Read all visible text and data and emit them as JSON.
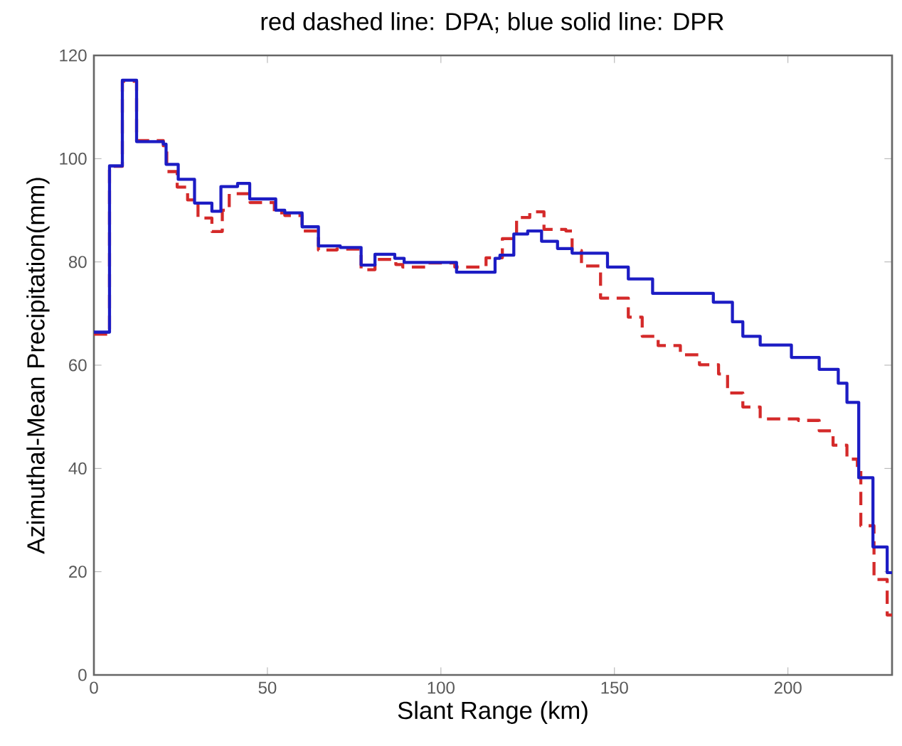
{
  "chart_data": {
    "type": "step",
    "title": "red dashed line: DPA; blue solid line: DPR",
    "xlabel": "Slant Range (km)",
    "ylabel": "Azimuthal-Mean Precipitation(mm)",
    "xlim": [
      0,
      230
    ],
    "ylim": [
      0,
      120
    ],
    "xticks": [
      0,
      50,
      100,
      150,
      200
    ],
    "yticks": [
      0,
      20,
      40,
      60,
      80,
      100,
      120
    ],
    "series": [
      {
        "color": "#d42a2a",
        "line_style": "dashed",
        "x": [
          0,
          4.5,
          8.2,
          12.3,
          20,
          21,
          24,
          27,
          30,
          34,
          37,
          39,
          45,
          52,
          55,
          60,
          64.7,
          70,
          77,
          81,
          87,
          89,
          96,
          104,
          113,
          117.7,
          121.8,
          125.6,
          129.7,
          136,
          137.8,
          140.5,
          146,
          154,
          158,
          162.6,
          169,
          174.5,
          180,
          182.6,
          187,
          192,
          203,
          209,
          213,
          217,
          220,
          221,
          224.8,
          228.6,
          230
        ],
        "values": [
          66,
          98.5,
          115,
          103.5,
          102.5,
          97.5,
          94.5,
          92,
          88.5,
          85.9,
          90,
          93.2,
          91.5,
          89.5,
          89,
          86,
          82.3,
          82.5,
          78.5,
          80.5,
          79.5,
          79,
          79.8,
          79,
          80.8,
          84.5,
          88.6,
          89.7,
          86.3,
          86,
          82.2,
          79.2,
          73,
          69.3,
          65.6,
          63.8,
          62,
          60.1,
          58.3,
          54.6,
          51.9,
          49.6,
          49.3,
          47.3,
          44.5,
          41.8,
          40,
          28.9,
          18.5,
          11.6,
          11.6
        ]
      },
      {
        "color": "#1c1cc4",
        "line_style": "solid",
        "x": [
          0,
          4.5,
          8.2,
          12.3,
          20,
          20.8,
          24.3,
          29,
          34,
          36.6,
          41.4,
          44.9,
          52.4,
          55,
          60,
          64.7,
          71,
          77,
          81,
          86.7,
          89.4,
          96,
          104.5,
          115.6,
          117,
          121,
          125,
          129,
          133.6,
          137.8,
          148,
          154,
          161,
          172,
          178.5,
          184,
          187,
          192,
          201,
          209,
          214.5,
          217,
          220.4,
          224.5,
          228.6,
          230
        ],
        "values": [
          66.4,
          98.6,
          115.2,
          103.3,
          102.8,
          98.9,
          96,
          91.4,
          89.8,
          94.6,
          95.2,
          92.2,
          90,
          89.5,
          86.8,
          83.1,
          82.8,
          79.4,
          81.5,
          80.7,
          79.9,
          79.9,
          78,
          80.7,
          81.3,
          85.4,
          86,
          84,
          82.6,
          81.7,
          79,
          76.7,
          73.9,
          73.9,
          72.2,
          68.4,
          65.6,
          63.9,
          61.5,
          59.2,
          56.5,
          52.8,
          38.2,
          24.8,
          19.8,
          19.8
        ]
      }
    ]
  }
}
